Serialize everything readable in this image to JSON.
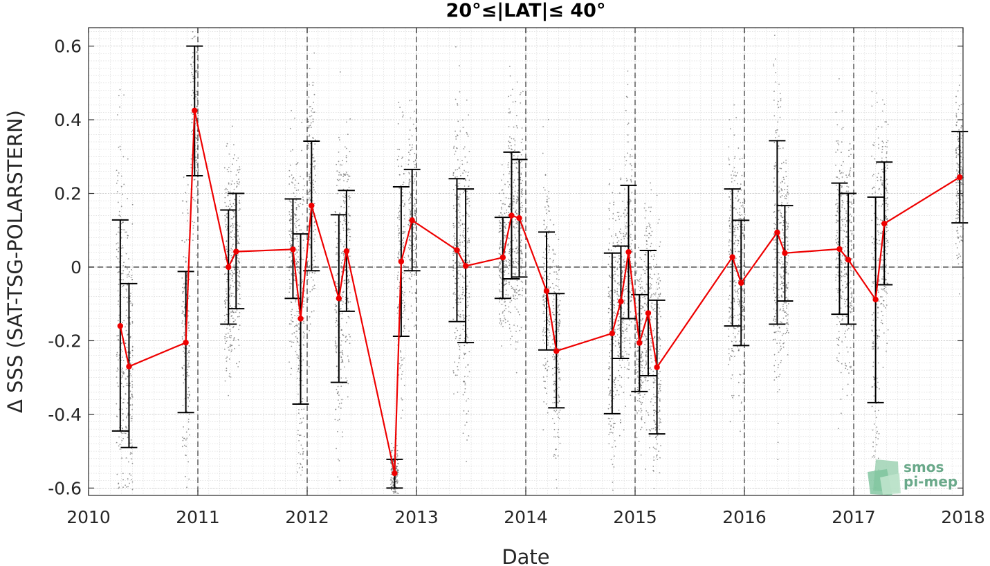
{
  "chart_data": {
    "type": "line",
    "title": "20°≤|LAT|≤ 40°",
    "xlabel": "Date",
    "ylabel": "Δ SSS (SAT-TSG-POLARSTERN)",
    "xlim": [
      2010,
      2018
    ],
    "ylim": [
      -0.62,
      0.65
    ],
    "x_ticks": [
      "2010",
      "2011",
      "2012",
      "2013",
      "2014",
      "2015",
      "2016",
      "2017",
      "2018"
    ],
    "y_ticks": [
      "0.6",
      "0.4",
      "0.2",
      "0",
      "-0.2",
      "-0.4",
      "-0.6"
    ],
    "y_tick_values": [
      0.6,
      0.4,
      0.2,
      0,
      -0.2,
      -0.4,
      -0.6
    ],
    "year_boundaries": [
      2011,
      2012,
      2013,
      2014,
      2015,
      2016,
      2017
    ],
    "zero_line": true,
    "grid": true,
    "line_color": "#ee0000",
    "errorbar_color": "#000000",
    "scatter_color": "#6e6e6e",
    "series": [
      {
        "x": [
          2010.29,
          2010.37,
          2010.89,
          2010.97,
          2011.28,
          2011.35,
          2011.87,
          2011.94,
          2012.04,
          2012.29,
          2012.36,
          2012.8,
          2012.86,
          2012.96,
          2013.37,
          2013.45,
          2013.79,
          2013.87,
          2013.94,
          2014.19,
          2014.28,
          2014.79,
          2014.87,
          2014.94,
          2015.04,
          2015.12,
          2015.2,
          2015.89,
          2015.97,
          2016.3,
          2016.37,
          2016.87,
          2016.95,
          2017.2,
          2017.28,
          2017.97
        ],
        "y": [
          -0.16,
          -0.27,
          -0.205,
          0.425,
          0.0,
          0.042,
          0.048,
          -0.14,
          0.167,
          -0.085,
          0.043,
          -0.56,
          0.015,
          0.127,
          0.046,
          0.003,
          0.026,
          0.14,
          0.133,
          -0.065,
          -0.228,
          -0.18,
          -0.093,
          0.041,
          -0.206,
          -0.125,
          -0.272,
          0.027,
          -0.043,
          0.094,
          0.038,
          0.049,
          0.02,
          -0.088,
          0.118,
          0.244
        ],
        "y_low": [
          -0.445,
          -0.49,
          -0.395,
          0.248,
          -0.155,
          -0.113,
          -0.085,
          -0.372,
          -0.01,
          -0.313,
          -0.12,
          -0.6,
          -0.188,
          -0.01,
          -0.148,
          -0.205,
          -0.085,
          -0.032,
          -0.027,
          -0.225,
          -0.382,
          -0.398,
          -0.248,
          -0.14,
          -0.338,
          -0.295,
          -0.453,
          -0.16,
          -0.213,
          -0.155,
          -0.092,
          -0.128,
          -0.155,
          -0.368,
          -0.048,
          0.12
        ],
        "y_high": [
          0.128,
          -0.045,
          -0.012,
          0.6,
          0.155,
          0.2,
          0.185,
          0.09,
          0.342,
          0.142,
          0.208,
          -0.522,
          0.218,
          0.265,
          0.24,
          0.212,
          0.135,
          0.312,
          0.292,
          0.095,
          -0.072,
          0.038,
          0.057,
          0.222,
          -0.075,
          0.045,
          -0.09,
          0.212,
          0.127,
          0.343,
          0.167,
          0.228,
          0.2,
          0.19,
          0.285,
          0.368
        ]
      }
    ]
  },
  "logo": {
    "line1": "smos",
    "line2": "pi-mep"
  }
}
